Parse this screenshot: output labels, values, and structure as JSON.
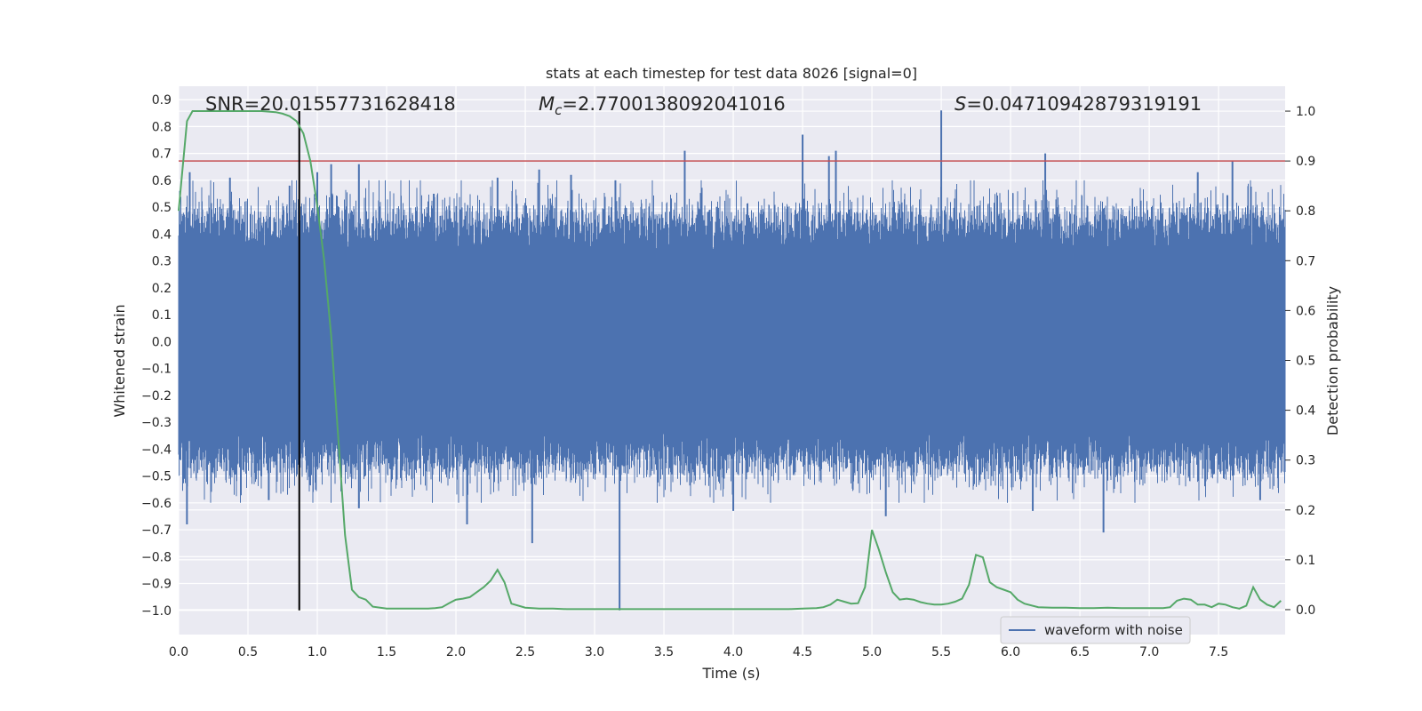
{
  "chart_data": {
    "type": "line",
    "title": "stats at each timestep for test data 8026 [signal=0]",
    "xlabel": "Time (s)",
    "ylabel_left": "Whitened strain",
    "ylabel_right": "Detection probability",
    "xlim": [
      0,
      7.98
    ],
    "ylim_left": [
      -1.09,
      0.95
    ],
    "ylim_right": [
      -0.05,
      1.05
    ],
    "x_ticks": [
      0.0,
      0.5,
      1.0,
      1.5,
      2.0,
      2.5,
      3.0,
      3.5,
      4.0,
      4.5,
      5.0,
      5.5,
      6.0,
      6.5,
      7.0,
      7.5
    ],
    "x_tick_labels": [
      "0.0",
      "0.5",
      "1.0",
      "1.5",
      "2.0",
      "2.5",
      "3.0",
      "3.5",
      "4.0",
      "4.5",
      "5.0",
      "5.5",
      "6.0",
      "6.5",
      "7.0",
      "7.5"
    ],
    "y_left_ticks": [
      0.9,
      0.8,
      0.7,
      0.6,
      0.5,
      0.4,
      0.3,
      0.2,
      0.1,
      0.0,
      -0.1,
      -0.2,
      -0.3,
      -0.4,
      -0.5,
      -0.6,
      -0.7,
      -0.8,
      -0.9,
      -1.0
    ],
    "y_left_tick_labels": [
      "0.9",
      "0.8",
      "0.7",
      "0.6",
      "0.5",
      "0.4",
      "0.3",
      "0.2",
      "0.1",
      "0.0",
      "−0.1",
      "−0.2",
      "−0.3",
      "−0.4",
      "−0.5",
      "−0.6",
      "−0.7",
      "−0.8",
      "−0.9",
      "−1.0"
    ],
    "y_right_ticks": [
      1.0,
      0.9,
      0.8,
      0.7,
      0.6,
      0.5,
      0.4,
      0.3,
      0.2,
      0.1,
      0.0
    ],
    "y_right_tick_labels": [
      "1.0",
      "0.9",
      "0.8",
      "0.7",
      "0.6",
      "0.5",
      "0.4",
      "0.3",
      "0.2",
      "0.1",
      "0.0"
    ],
    "threshold": {
      "value": 0.9,
      "axis": "right",
      "color": "#c44e52"
    },
    "marker_line": {
      "x": 0.87,
      "y_from": -1.0,
      "y_to": 1.0,
      "color": "#000000"
    },
    "annotations": {
      "snr": "SNR=20.01557731628418",
      "mc_symbol": "M",
      "mc_sub": "c",
      "mc_value": "=2.7700138092041016",
      "s_symbol": "S",
      "s_value": "=0.04710942879319191"
    },
    "legend": {
      "label": "waveform with noise",
      "position": "lower-right"
    },
    "series": [
      {
        "name": "waveform with noise",
        "axis": "left",
        "color": "#4c72b0",
        "kind": "noise",
        "typical_amplitude": 0.45,
        "spikes": [
          {
            "x": 0.06,
            "y": -0.68
          },
          {
            "x": 0.08,
            "y": 0.63
          },
          {
            "x": 0.37,
            "y": 0.61
          },
          {
            "x": 0.65,
            "y": -0.59
          },
          {
            "x": 0.8,
            "y": 0.58
          },
          {
            "x": 1.0,
            "y": 0.63
          },
          {
            "x": 1.1,
            "y": 0.66
          },
          {
            "x": 1.3,
            "y": 0.66
          },
          {
            "x": 1.3,
            "y": -0.62
          },
          {
            "x": 1.84,
            "y": 0.55
          },
          {
            "x": 2.08,
            "y": -0.68
          },
          {
            "x": 2.3,
            "y": 0.61
          },
          {
            "x": 2.55,
            "y": -0.75
          },
          {
            "x": 2.6,
            "y": 0.64
          },
          {
            "x": 2.83,
            "y": 0.62
          },
          {
            "x": 3.18,
            "y": -1.0
          },
          {
            "x": 3.15,
            "y": 0.6
          },
          {
            "x": 3.65,
            "y": 0.71
          },
          {
            "x": 4.0,
            "y": -0.63
          },
          {
            "x": 4.5,
            "y": 0.77
          },
          {
            "x": 4.69,
            "y": 0.69
          },
          {
            "x": 4.74,
            "y": 0.71
          },
          {
            "x": 5.1,
            "y": -0.65
          },
          {
            "x": 5.5,
            "y": 0.86
          },
          {
            "x": 6.16,
            "y": -0.63
          },
          {
            "x": 6.25,
            "y": 0.7
          },
          {
            "x": 6.67,
            "y": -0.71
          },
          {
            "x": 7.35,
            "y": 0.63
          },
          {
            "x": 7.6,
            "y": 0.67
          },
          {
            "x": 7.8,
            "y": -0.59
          }
        ]
      },
      {
        "name": "detection probability",
        "axis": "right",
        "color": "#55a868",
        "x": [
          0.0,
          0.06,
          0.1,
          0.2,
          0.3,
          0.4,
          0.5,
          0.6,
          0.7,
          0.75,
          0.8,
          0.85,
          0.9,
          0.95,
          1.0,
          1.05,
          1.1,
          1.15,
          1.2,
          1.25,
          1.3,
          1.35,
          1.4,
          1.5,
          1.6,
          1.7,
          1.8,
          1.85,
          1.9,
          1.95,
          2.0,
          2.05,
          2.1,
          2.15,
          2.2,
          2.25,
          2.3,
          2.35,
          2.4,
          2.5,
          2.6,
          2.7,
          2.8,
          2.9,
          3.0,
          3.2,
          3.4,
          3.6,
          3.8,
          4.0,
          4.2,
          4.4,
          4.5,
          4.6,
          4.65,
          4.7,
          4.75,
          4.8,
          4.85,
          4.9,
          4.95,
          5.0,
          5.05,
          5.1,
          5.15,
          5.2,
          5.25,
          5.3,
          5.35,
          5.4,
          5.45,
          5.5,
          5.55,
          5.6,
          5.65,
          5.7,
          5.75,
          5.8,
          5.85,
          5.9,
          5.95,
          6.0,
          6.05,
          6.1,
          6.2,
          6.3,
          6.4,
          6.5,
          6.6,
          6.7,
          6.8,
          6.9,
          7.0,
          7.1,
          7.15,
          7.2,
          7.25,
          7.3,
          7.35,
          7.4,
          7.45,
          7.5,
          7.55,
          7.6,
          7.65,
          7.7,
          7.75,
          7.8,
          7.85,
          7.9,
          7.95
        ],
        "y": [
          0.8,
          0.98,
          1.0,
          1.0,
          1.0,
          1.0,
          1.0,
          1.0,
          0.998,
          0.995,
          0.99,
          0.98,
          0.955,
          0.9,
          0.81,
          0.7,
          0.55,
          0.35,
          0.15,
          0.04,
          0.025,
          0.02,
          0.006,
          0.002,
          0.002,
          0.002,
          0.002,
          0.003,
          0.005,
          0.013,
          0.02,
          0.022,
          0.025,
          0.035,
          0.045,
          0.058,
          0.08,
          0.055,
          0.012,
          0.004,
          0.002,
          0.002,
          0.001,
          0.001,
          0.001,
          0.001,
          0.001,
          0.001,
          0.001,
          0.001,
          0.001,
          0.001,
          0.002,
          0.003,
          0.005,
          0.01,
          0.02,
          0.016,
          0.012,
          0.013,
          0.045,
          0.16,
          0.12,
          0.075,
          0.035,
          0.02,
          0.022,
          0.02,
          0.015,
          0.012,
          0.01,
          0.01,
          0.012,
          0.016,
          0.022,
          0.05,
          0.11,
          0.105,
          0.055,
          0.045,
          0.04,
          0.035,
          0.02,
          0.012,
          0.005,
          0.004,
          0.004,
          0.003,
          0.003,
          0.004,
          0.003,
          0.003,
          0.003,
          0.003,
          0.005,
          0.018,
          0.022,
          0.02,
          0.01,
          0.01,
          0.005,
          0.012,
          0.01,
          0.005,
          0.002,
          0.008,
          0.045,
          0.02,
          0.01,
          0.005,
          0.018
        ]
      }
    ]
  }
}
